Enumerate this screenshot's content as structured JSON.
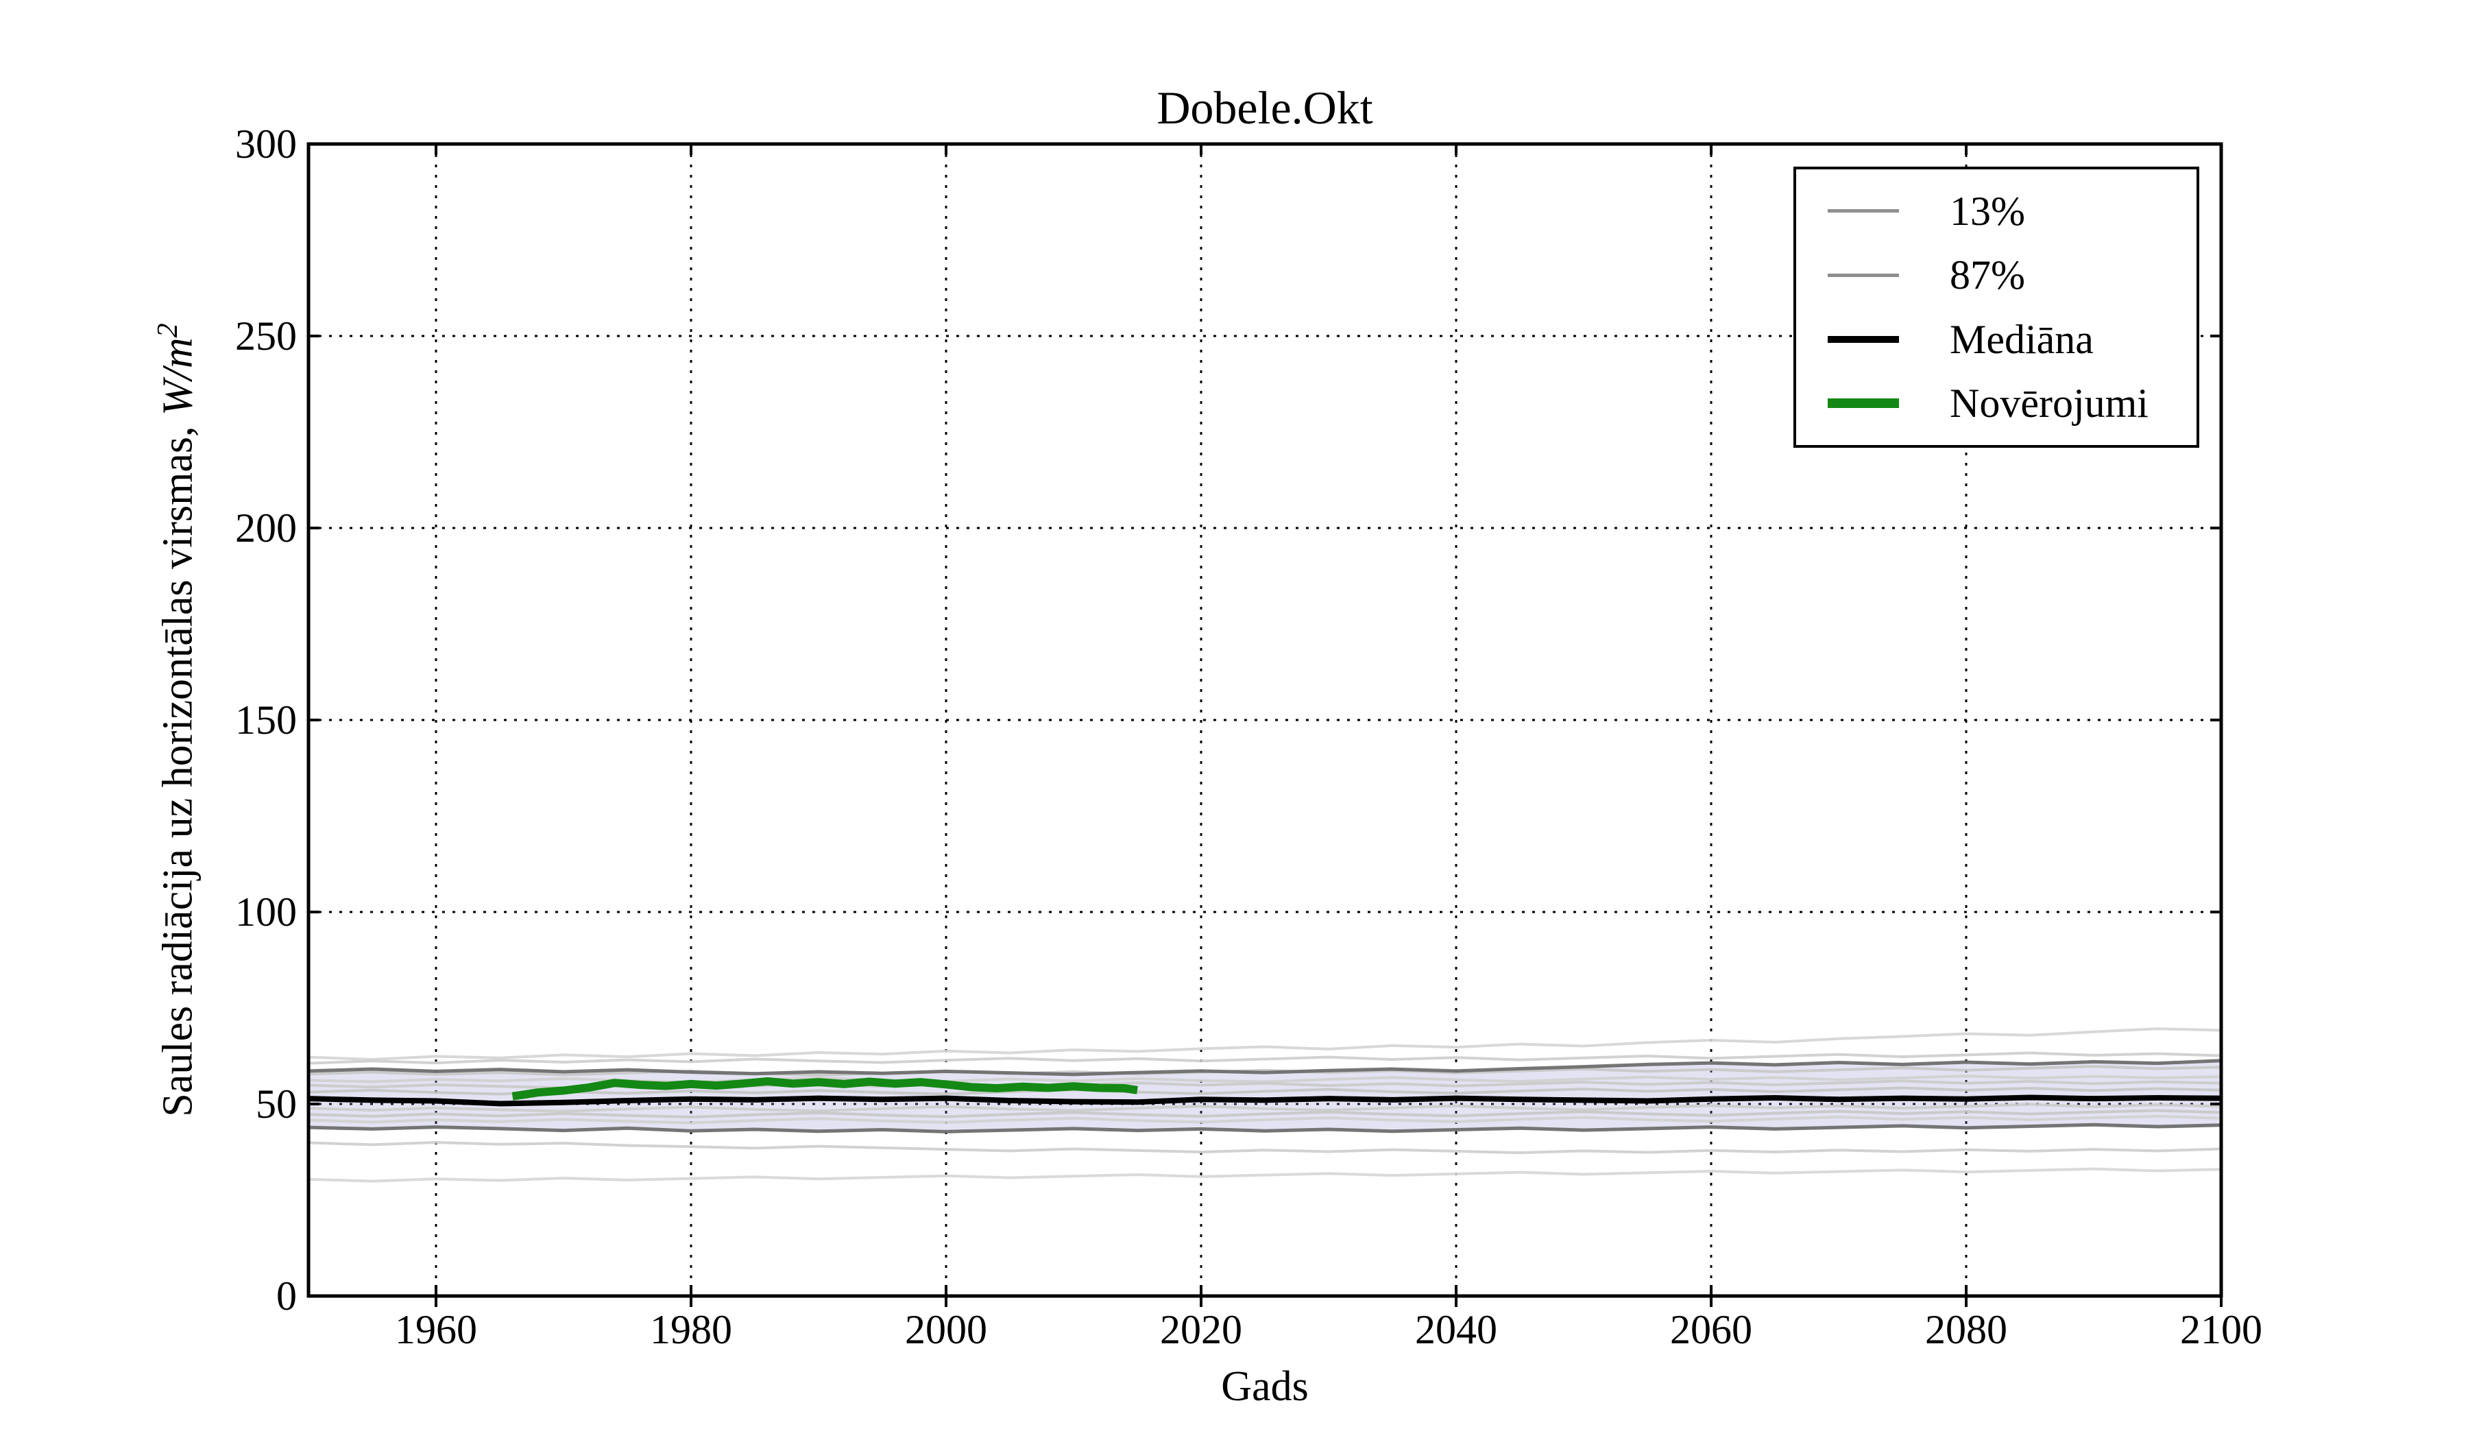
{
  "figure": {
    "background": "#ffffff"
  },
  "chart_data": {
    "type": "line",
    "title": "Dobele.Okt",
    "xlabel": "Gads",
    "ylabel": "Saules radiācija uz horizontālas virsmas, W/m²",
    "ylabel_text": "Saules radiācija uz horizontālas virsmas, ",
    "ylabel_units_base": "W/m",
    "ylabel_units_exp": "2",
    "xlim": [
      1950,
      2100
    ],
    "ylim": [
      0,
      300
    ],
    "xticks": [
      1960,
      1980,
      2000,
      2020,
      2040,
      2060,
      2080,
      2100
    ],
    "yticks": [
      0,
      50,
      100,
      150,
      200,
      250,
      300
    ],
    "grid": {
      "visible": true,
      "style": "dotted",
      "color": "#000000"
    },
    "band": {
      "between": [
        "87%",
        "13%"
      ],
      "color": "#9090cf",
      "opacity": 0.25
    },
    "x_years": [
      1950,
      1955,
      1960,
      1965,
      1970,
      1975,
      1980,
      1985,
      1990,
      1995,
      2000,
      2005,
      2010,
      2015,
      2020,
      2025,
      2030,
      2035,
      2040,
      2045,
      2050,
      2055,
      2060,
      2065,
      2070,
      2075,
      2080,
      2085,
      2090,
      2095,
      2100
    ],
    "series": [
      {
        "name": "ensemble-1",
        "role": "ensemble-member",
        "color": "#d4d4d4",
        "line_width": 4,
        "opacity": 0.9,
        "values": [
          62.2,
          61.6,
          62.4,
          62.0,
          62.8,
          62.3,
          63.1,
          62.6,
          63.4,
          63.0,
          63.8,
          63.3,
          64.1,
          63.7,
          64.4,
          64.9,
          64.3,
          65.2,
          64.8,
          65.6,
          65.1,
          66.0,
          66.6,
          66.1,
          67.0,
          67.6,
          68.3,
          67.9,
          68.8,
          69.6,
          69.2
        ]
      },
      {
        "name": "ensemble-2",
        "role": "ensemble-member",
        "color": "#cdcdcd",
        "line_width": 4,
        "opacity": 0.9,
        "values": [
          60.6,
          61.2,
          60.7,
          61.4,
          60.9,
          61.5,
          61.0,
          61.7,
          61.2,
          60.8,
          61.4,
          61.9,
          61.3,
          61.8,
          61.2,
          61.7,
          62.2,
          61.6,
          62.1,
          61.5,
          62.0,
          62.5,
          61.9,
          62.4,
          62.9,
          62.3,
          62.8,
          63.3,
          62.7,
          63.1,
          62.6
        ]
      },
      {
        "name": "ensemble-3",
        "role": "ensemble-member",
        "color": "#c6c6c6",
        "line_width": 4,
        "opacity": 0.9,
        "values": [
          57.8,
          58.3,
          57.7,
          58.2,
          57.6,
          58.1,
          58.6,
          58.0,
          57.5,
          58.0,
          58.5,
          57.9,
          58.4,
          57.8,
          58.3,
          58.8,
          58.2,
          58.7,
          58.1,
          58.6,
          59.1,
          58.5,
          59.0,
          58.4,
          58.9,
          59.4,
          58.8,
          59.3,
          59.8,
          59.2,
          59.6
        ]
      },
      {
        "name": "ensemble-4",
        "role": "ensemble-member",
        "color": "#cfcfcf",
        "line_width": 4,
        "opacity": 0.9,
        "values": [
          56.2,
          55.8,
          56.4,
          56.0,
          56.6,
          56.1,
          55.7,
          56.3,
          56.8,
          56.2,
          55.9,
          56.5,
          56.0,
          56.6,
          56.1,
          55.8,
          56.4,
          56.9,
          56.3,
          55.9,
          56.5,
          57.0,
          56.4,
          56.9,
          56.3,
          56.8,
          57.3,
          56.7,
          57.2,
          56.8,
          57.1
        ]
      },
      {
        "name": "ensemble-5",
        "role": "ensemble-member",
        "color": "#c9c9c9",
        "line_width": 4,
        "opacity": 0.9,
        "values": [
          54.9,
          54.4,
          55.0,
          54.6,
          54.2,
          54.8,
          55.3,
          54.7,
          55.2,
          54.6,
          55.1,
          54.5,
          55.0,
          55.5,
          54.9,
          55.4,
          54.8,
          55.3,
          54.7,
          55.2,
          55.7,
          55.1,
          55.6,
          55.0,
          55.5,
          56.0,
          55.4,
          55.9,
          55.3,
          55.8,
          55.4
        ]
      },
      {
        "name": "ensemble-6",
        "role": "ensemble-member",
        "color": "#c4c4c4",
        "line_width": 4,
        "opacity": 0.9,
        "values": [
          53.1,
          53.6,
          53.0,
          52.6,
          53.2,
          52.8,
          53.4,
          52.9,
          53.5,
          53.0,
          52.6,
          53.2,
          53.7,
          53.1,
          52.7,
          53.3,
          53.8,
          53.2,
          52.8,
          53.4,
          53.9,
          53.3,
          53.8,
          53.2,
          53.7,
          54.2,
          53.6,
          54.1,
          53.5,
          54.0,
          53.6
        ]
      },
      {
        "name": "ensemble-7",
        "role": "ensemble-member",
        "color": "#cbcbcb",
        "line_width": 4,
        "opacity": 0.9,
        "values": [
          48.9,
          48.4,
          49.0,
          48.5,
          48.1,
          48.7,
          49.2,
          48.6,
          48.2,
          48.8,
          49.3,
          48.7,
          48.3,
          48.9,
          49.4,
          48.8,
          48.4,
          49.0,
          49.5,
          48.9,
          48.5,
          49.1,
          49.6,
          49.0,
          49.5,
          48.9,
          49.4,
          49.9,
          49.3,
          49.8,
          49.4
        ]
      },
      {
        "name": "ensemble-8",
        "role": "ensemble-member",
        "color": "#c6c6c6",
        "line_width": 4,
        "opacity": 0.9,
        "values": [
          47.3,
          46.8,
          47.4,
          46.9,
          47.5,
          47.0,
          46.6,
          47.2,
          47.7,
          47.1,
          46.7,
          47.3,
          47.8,
          47.2,
          46.8,
          47.4,
          47.9,
          47.3,
          46.9,
          47.5,
          48.0,
          47.4,
          47.0,
          47.6,
          48.1,
          47.5,
          48.0,
          47.4,
          47.9,
          48.3,
          47.8
        ]
      },
      {
        "name": "ensemble-9",
        "role": "ensemble-member",
        "color": "#d0d0d0",
        "line_width": 4,
        "opacity": 0.9,
        "values": [
          45.8,
          45.3,
          45.9,
          45.4,
          46.0,
          45.5,
          45.1,
          45.7,
          46.2,
          45.6,
          45.2,
          45.8,
          46.3,
          45.7,
          45.3,
          45.9,
          46.4,
          45.8,
          45.4,
          46.0,
          46.5,
          45.9,
          45.5,
          46.1,
          46.6,
          46.0,
          46.5,
          45.9,
          46.4,
          46.8,
          46.3
        ]
      },
      {
        "name": "ensemble-10",
        "role": "ensemble-member",
        "color": "#cdcdcd",
        "line_width": 4,
        "opacity": 0.9,
        "values": [
          39.9,
          39.4,
          40.0,
          39.5,
          39.8,
          39.2,
          38.9,
          38.5,
          39.0,
          38.6,
          38.2,
          37.8,
          38.3,
          37.9,
          37.5,
          38.0,
          37.6,
          38.1,
          37.7,
          37.3,
          37.8,
          37.4,
          37.9,
          37.5,
          38.0,
          37.6,
          38.1,
          37.7,
          38.2,
          37.8,
          38.3
        ]
      },
      {
        "name": "ensemble-11",
        "role": "ensemble-member",
        "color": "#d6d6d6",
        "line_width": 4,
        "opacity": 0.9,
        "values": [
          30.4,
          29.9,
          30.5,
          30.1,
          30.7,
          30.2,
          30.6,
          31.0,
          30.5,
          30.9,
          31.3,
          30.8,
          31.2,
          31.6,
          31.1,
          31.5,
          31.9,
          31.4,
          31.8,
          32.2,
          31.7,
          32.1,
          32.5,
          32.0,
          32.4,
          32.8,
          32.3,
          32.7,
          33.1,
          32.6,
          33.0
        ]
      },
      {
        "name": "13%",
        "role": "percentile-lower",
        "color": "#6e6e6e",
        "line_width": 5,
        "opacity": 0.95,
        "values": [
          43.9,
          43.5,
          44.0,
          43.6,
          43.1,
          43.7,
          43.0,
          43.4,
          42.9,
          43.3,
          42.8,
          43.2,
          43.6,
          43.1,
          43.5,
          43.0,
          43.4,
          42.9,
          43.3,
          43.7,
          43.2,
          43.6,
          44.0,
          43.5,
          43.9,
          44.3,
          43.8,
          44.2,
          44.6,
          44.1,
          44.5
        ]
      },
      {
        "name": "87%",
        "role": "percentile-upper",
        "color": "#6e6e6e",
        "line_width": 5,
        "opacity": 0.95,
        "values": [
          58.6,
          59.1,
          58.5,
          59.0,
          58.4,
          58.9,
          58.3,
          57.9,
          58.4,
          58.0,
          58.5,
          58.1,
          57.7,
          58.2,
          58.6,
          58.2,
          58.7,
          59.1,
          58.6,
          59.2,
          59.7,
          60.3,
          60.7,
          60.2,
          60.8,
          60.3,
          60.9,
          60.4,
          61.0,
          60.6,
          61.3
        ]
      },
      {
        "name": "Mediāna",
        "role": "median",
        "color": "#000000",
        "line_width": 8,
        "opacity": 1,
        "values": [
          51.4,
          51.0,
          50.8,
          50.1,
          50.4,
          50.9,
          51.3,
          51.1,
          51.5,
          51.2,
          51.5,
          50.9,
          50.6,
          50.5,
          51.2,
          51.0,
          51.4,
          51.1,
          51.5,
          51.2,
          51.0,
          50.8,
          51.3,
          51.6,
          51.2,
          51.5,
          51.3,
          51.7,
          51.4,
          51.6,
          51.5
        ]
      },
      {
        "name": "Novērojumi",
        "role": "observations",
        "color": "#148814",
        "line_width": 12,
        "opacity": 1,
        "x": [
          1966,
          1968,
          1970,
          1972,
          1974,
          1976,
          1978,
          1980,
          1982,
          1984,
          1986,
          1988,
          1990,
          1992,
          1994,
          1996,
          1998,
          2000,
          2002,
          2004,
          2006,
          2008,
          2010,
          2012,
          2014,
          2015
        ],
        "values": [
          52.0,
          53.0,
          53.5,
          54.3,
          55.5,
          55.0,
          54.7,
          55.2,
          54.8,
          55.3,
          55.9,
          55.3,
          55.7,
          55.2,
          55.8,
          55.3,
          55.7,
          55.1,
          54.4,
          54.1,
          54.5,
          54.2,
          54.6,
          54.2,
          54.1,
          53.6
        ]
      }
    ],
    "legend": {
      "position": "upper-right",
      "items": [
        {
          "label": "13%",
          "color": "#8f8f8f",
          "line_width": 5
        },
        {
          "label": "87%",
          "color": "#8f8f8f",
          "line_width": 5
        },
        {
          "label": "Mediāna",
          "color": "#000000",
          "line_width": 10
        },
        {
          "label": "Novērojumi",
          "color": "#148814",
          "line_width": 14
        }
      ]
    }
  }
}
